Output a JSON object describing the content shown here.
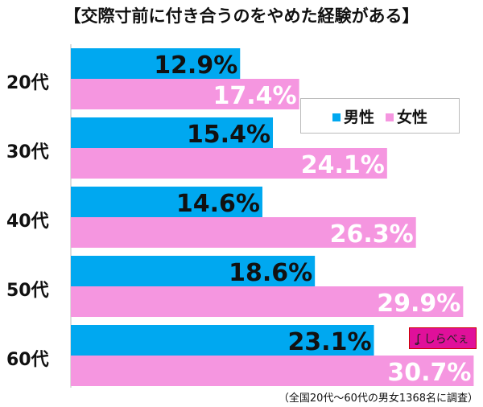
{
  "chart_data": {
    "type": "bar",
    "orientation": "horizontal",
    "title": "【交際寸前に付き合うのをやめた経験がある】",
    "categories": [
      "20代",
      "30代",
      "40代",
      "50代",
      "60代"
    ],
    "series": [
      {
        "name": "男性",
        "color": "#00a8f0",
        "values": [
          12.9,
          15.4,
          14.6,
          18.6,
          23.1
        ]
      },
      {
        "name": "女性",
        "color": "#f596e0",
        "values": [
          17.4,
          24.1,
          26.3,
          29.9,
          30.7
        ]
      }
    ],
    "value_suffix": "%",
    "xlim": [
      0,
      31
    ],
    "legend": "right",
    "note": "（全国20代〜60代の男女1368名に調査）"
  },
  "logo": "しらべぇ"
}
